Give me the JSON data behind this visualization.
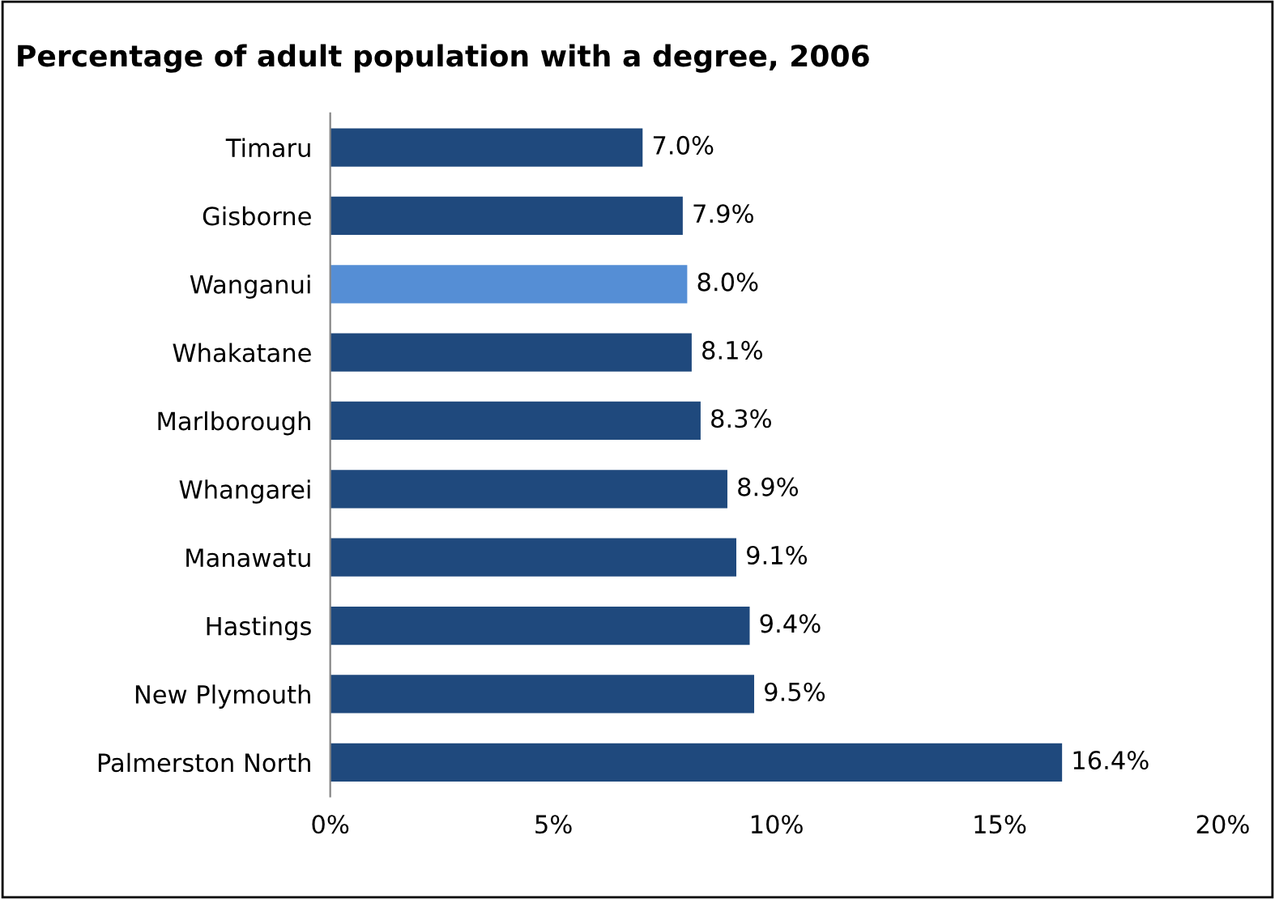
{
  "chart_data": {
    "type": "bar",
    "orientation": "horizontal",
    "title": "Percentage of adult population with a degree, 2006",
    "categories": [
      "Timaru",
      "Gisborne",
      "Wanganui",
      "Whakatane",
      "Marlborough",
      "Whangarei",
      "Manawatu",
      "Hastings",
      "New Plymouth",
      "Palmerston North"
    ],
    "values": [
      7.0,
      7.9,
      8.0,
      8.1,
      8.3,
      8.9,
      9.1,
      9.4,
      9.5,
      16.4
    ],
    "colors": [
      "#1f497d",
      "#1f497d",
      "#558ed5",
      "#1f497d",
      "#1f497d",
      "#1f497d",
      "#1f497d",
      "#1f497d",
      "#1f497d",
      "#1f497d"
    ],
    "value_labels": [
      "7.0%",
      "7.9%",
      "8.0%",
      "8.1%",
      "8.3%",
      "8.9%",
      "9.1%",
      "9.4%",
      "9.5%",
      "16.4%"
    ],
    "xlim": [
      0,
      20
    ],
    "xticks": [
      {
        "value": 0,
        "label": "0%"
      },
      {
        "value": 5,
        "label": "5%"
      },
      {
        "value": 10,
        "label": "10%"
      },
      {
        "value": 15,
        "label": "15%"
      },
      {
        "value": 20,
        "label": "20%"
      }
    ],
    "grid": false,
    "legend": false
  }
}
